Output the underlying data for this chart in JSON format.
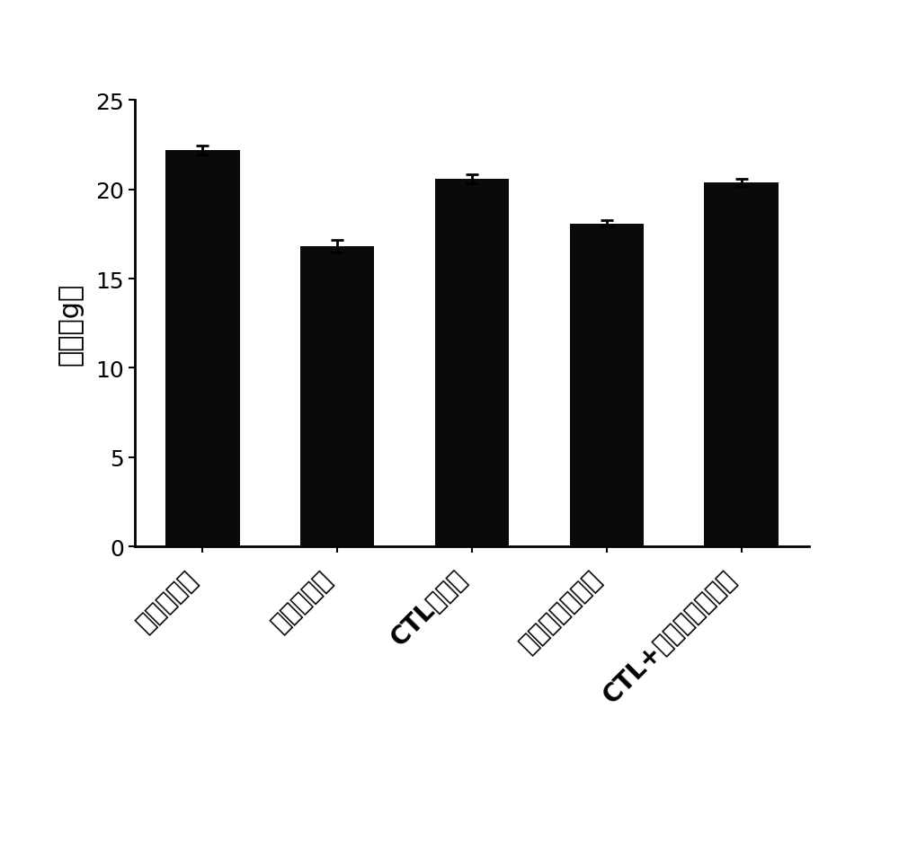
{
  "categories": [
    "空白对照组",
    "模型对照组",
    "CTL治疗组",
    "吉非替尼治疗组",
    "CTL+吉非替尼治疗组"
  ],
  "values": [
    22.2,
    16.8,
    20.6,
    18.1,
    20.4
  ],
  "errors": [
    0.25,
    0.35,
    0.25,
    0.2,
    0.2
  ],
  "bar_color": "#0a0a0a",
  "bar_width": 0.55,
  "ylabel": "体重（g）",
  "ylim": [
    0,
    25
  ],
  "yticks": [
    0,
    5,
    10,
    15,
    20,
    25
  ],
  "background_color": "#ffffff",
  "ylabel_fontsize": 22,
  "tick_fontsize": 18,
  "xtick_fontsize": 20,
  "bold_labels": [
    "CTL治疗组",
    "CTL+吉非替尼治疗组"
  ],
  "spine_linewidth": 2.0
}
